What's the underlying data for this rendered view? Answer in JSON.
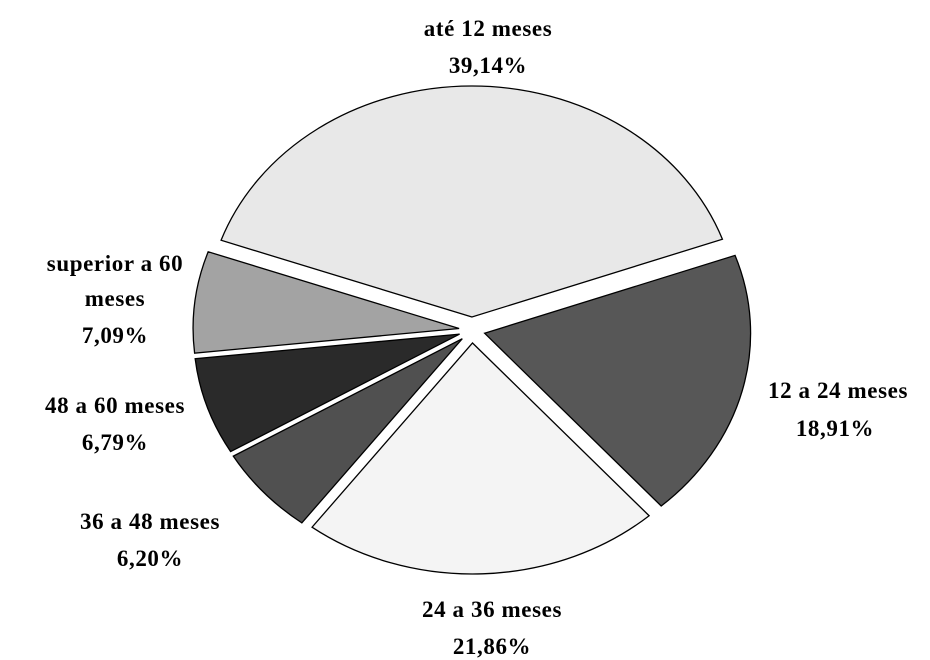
{
  "chart_data": {
    "type": "pie",
    "slices": [
      {
        "label": "até 12 meses",
        "value_label": "39,14%",
        "value": 39.14,
        "color": "#e8e8e8"
      },
      {
        "label": "12 a 24 meses",
        "value_label": "18,91%",
        "value": 18.91,
        "color": "#575757"
      },
      {
        "label": "24 a 36 meses",
        "value_label": "21,86%",
        "value": 21.86,
        "color": "#f4f4f4"
      },
      {
        "label": "36 a 48 meses",
        "value_label": "6,20%",
        "value": 6.2,
        "color": "#505050"
      },
      {
        "label": "48 a 60 meses",
        "value_label": "6,79%",
        "value": 6.79,
        "color": "#2a2a2a"
      },
      {
        "label": "superior a 60 meses",
        "value_label": "7,09%",
        "value": 7.09,
        "color": "#a3a3a3"
      }
    ]
  }
}
